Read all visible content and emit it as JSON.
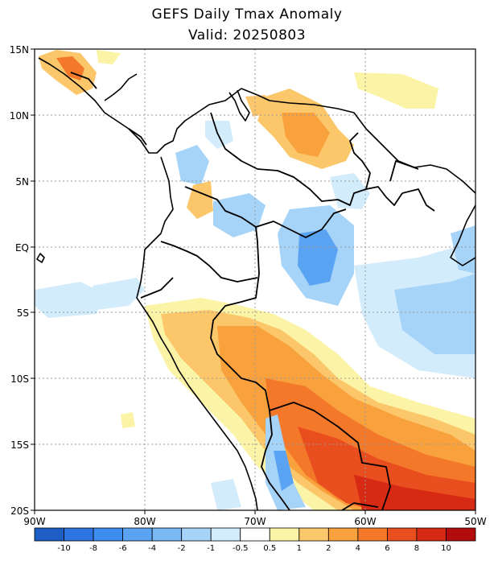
{
  "header": {
    "title": "GEFS Daily Tmax Anomaly",
    "valid": "Valid: 20250803"
  },
  "map": {
    "lon_range": [
      -90,
      -50
    ],
    "lat_range": [
      -20,
      15
    ],
    "lat_ticks": [
      "15N",
      "10N",
      "5N",
      "EQ",
      "5S",
      "10S",
      "15S",
      "20S"
    ],
    "lon_ticks": [
      "90W",
      "80W",
      "70W",
      "60W",
      "50W"
    ],
    "grid": "dotted"
  },
  "colorbar": {
    "labels": [
      "-10",
      "-8",
      "-6",
      "-4",
      "-2",
      "-1",
      "-0.5",
      "0.5",
      "1",
      "2",
      "4",
      "6",
      "8",
      "10"
    ],
    "colors": [
      "#1d5fc4",
      "#2c75e0",
      "#3d8cf0",
      "#5aa3f2",
      "#79b8f3",
      "#a6d3f8",
      "#d3ecfb",
      "#ffffff",
      "#fbf3a5",
      "#fbc76a",
      "#f9a23d",
      "#f4782a",
      "#e84e1e",
      "#d72a14",
      "#b20c0c"
    ]
  }
}
